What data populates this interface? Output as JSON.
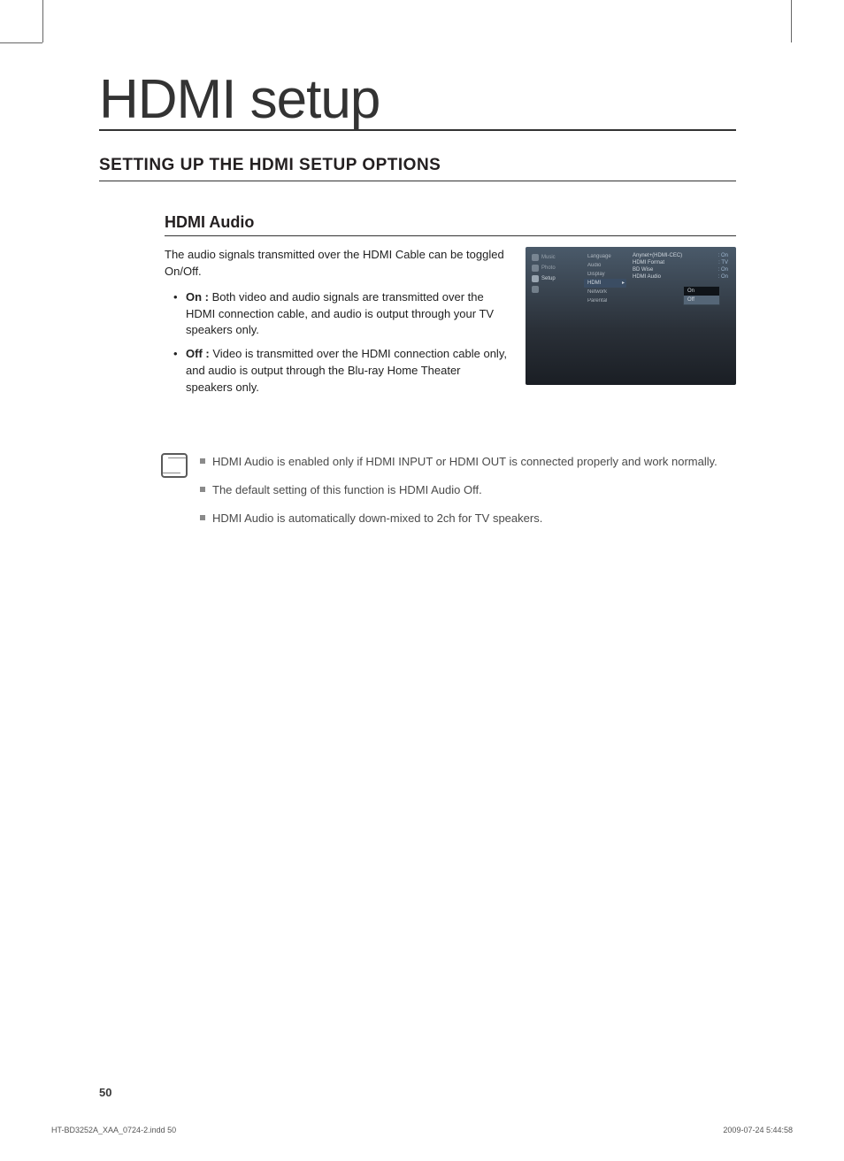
{
  "title": "HDMI setup",
  "section_heading": "SETTING UP THE HDMI SETUP OPTIONS",
  "sub_heading": "HDMI Audio",
  "intro": "The audio signals transmitted over the HDMI Cable can be toggled On/Off.",
  "bullets": [
    {
      "label": "On :",
      "text": " Both video and audio signals are transmitted over the HDMI connection cable, and audio is output through your TV speakers only."
    },
    {
      "label": "Off :",
      "text": " Video is transmitted over the HDMI connection cable only, and audio is output through the Blu-ray Home Theater speakers only."
    }
  ],
  "notes": [
    "HDMI Audio is enabled only if HDMI INPUT or HDMI OUT is connected properly and work normally.",
    "The default setting of this function is HDMI Audio Off.",
    "HDMI Audio is automatically down-mixed to 2ch for TV speakers."
  ],
  "screenshot": {
    "type": "ui-menu",
    "background_gradient": [
      "#4a5a6a",
      "#2a3038",
      "#1a1e24"
    ],
    "text_color": "#cfd6dd",
    "value_color": "#9fb7d0",
    "highlight_bg": "#556677",
    "left_tabs": [
      {
        "label": "Music",
        "icon": "music-icon"
      },
      {
        "label": "Photo",
        "icon": "photo-icon"
      },
      {
        "label": "Setup",
        "icon": "gear-icon",
        "selected": true
      },
      {
        "label": "",
        "icon": "disc-icon"
      }
    ],
    "mid_items": [
      {
        "label": "Language"
      },
      {
        "label": "Audio"
      },
      {
        "label": "Display"
      },
      {
        "label": "HDMI",
        "selected": true
      },
      {
        "label": "Network"
      },
      {
        "label": "Parental"
      }
    ],
    "right_items": [
      {
        "label": "Anynet+(HDMI-CEC)",
        "value": ": On"
      },
      {
        "label": "HDMI Format",
        "value": ": TV"
      },
      {
        "label": "BD Wise",
        "value": ": On"
      },
      {
        "label": "HDMI Audio",
        "value": ": On",
        "selected": true
      }
    ],
    "popup": {
      "options": [
        "On",
        "Off"
      ],
      "selected": "Off"
    }
  },
  "page_number": "50",
  "footer_file": "HT-BD3252A_XAA_0724-2.indd   50",
  "footer_timestamp": "2009-07-24    5:44:58"
}
